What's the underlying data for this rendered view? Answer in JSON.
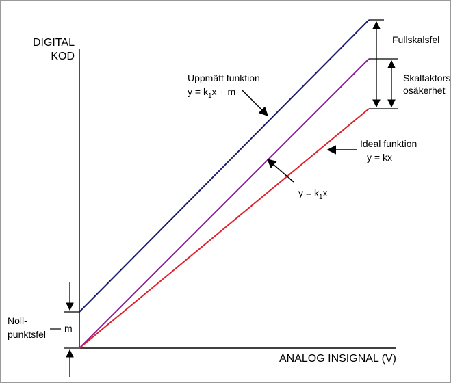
{
  "axes": {
    "y_label_line1": "DIGITAL",
    "y_label_line2": "KOD",
    "x_label": "ANALOG INSIGNAL (V)"
  },
  "lines": {
    "measured": {
      "label_line1": "Uppmätt funktion",
      "formula_prefix": "y = k",
      "formula_sub": "1",
      "formula_suffix": "x + m",
      "color": "#1a1a6e"
    },
    "scaled": {
      "formula_prefix": "y = k",
      "formula_sub": "1",
      "formula_suffix": "x",
      "color": "#8a1a9a"
    },
    "ideal": {
      "label_line1": "Ideal funktion",
      "label_line2": "y = kx",
      "color": "#e0202a"
    }
  },
  "annotations": {
    "full_scale_error": "Fullskalsfel",
    "scale_factor_line1": "Skalfaktors-",
    "scale_factor_line2": "osäkerhet",
    "offset_line1": "Noll-",
    "offset_line2": "punktsfel",
    "offset_symbol": "m"
  }
}
